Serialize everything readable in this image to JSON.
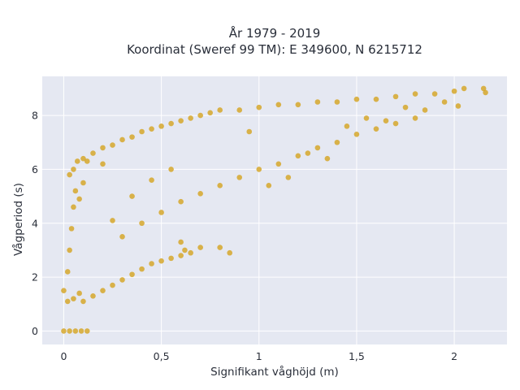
{
  "chart_data": {
    "type": "scatter",
    "title": "År 1979 - 2019",
    "subtitle": "Koordinat (Sweref 99 TM): E 349600, N 6215712",
    "xlabel": "Signifikant våghöjd (m)",
    "ylabel": "Vågperiod (s)",
    "xlim": [
      -0.11,
      2.27
    ],
    "ylim": [
      -0.5,
      9.45
    ],
    "x_ticks": [
      "0",
      "0,5",
      "1",
      "1,5",
      "2"
    ],
    "x_tick_values": [
      0,
      0.5,
      1,
      1.5,
      2
    ],
    "y_ticks": [
      "0",
      "2",
      "4",
      "6",
      "8"
    ],
    "y_tick_values": [
      0,
      2,
      4,
      6,
      8
    ],
    "grid": true,
    "point_color": "#D4A21E",
    "background_color": "#E5E8F2",
    "series": [
      {
        "values": [
          [
            0.0,
            0.0
          ],
          [
            0.03,
            0.0
          ],
          [
            0.06,
            0.0
          ],
          [
            0.09,
            0.0
          ],
          [
            0.12,
            0.0
          ],
          [
            0.0,
            1.5
          ],
          [
            0.02,
            1.1
          ],
          [
            0.05,
            1.2
          ],
          [
            0.08,
            1.4
          ],
          [
            0.1,
            1.1
          ],
          [
            0.02,
            2.2
          ],
          [
            0.03,
            3.0
          ],
          [
            0.04,
            3.8
          ],
          [
            0.05,
            4.6
          ],
          [
            0.06,
            5.2
          ],
          [
            0.03,
            5.8
          ],
          [
            0.05,
            6.0
          ],
          [
            0.07,
            6.3
          ],
          [
            0.1,
            6.4
          ],
          [
            0.12,
            6.3
          ],
          [
            0.15,
            1.3
          ],
          [
            0.2,
            1.5
          ],
          [
            0.25,
            1.7
          ],
          [
            0.3,
            1.9
          ],
          [
            0.35,
            2.1
          ],
          [
            0.4,
            2.3
          ],
          [
            0.45,
            2.5
          ],
          [
            0.5,
            2.6
          ],
          [
            0.55,
            2.7
          ],
          [
            0.6,
            2.8
          ],
          [
            0.65,
            2.9
          ],
          [
            0.7,
            3.1
          ],
          [
            0.8,
            3.1
          ],
          [
            0.15,
            6.6
          ],
          [
            0.2,
            6.8
          ],
          [
            0.25,
            6.9
          ],
          [
            0.3,
            7.1
          ],
          [
            0.35,
            7.2
          ],
          [
            0.4,
            7.4
          ],
          [
            0.45,
            7.5
          ],
          [
            0.5,
            7.6
          ],
          [
            0.55,
            7.7
          ],
          [
            0.6,
            7.8
          ],
          [
            0.65,
            7.9
          ],
          [
            0.7,
            8.0
          ],
          [
            0.75,
            8.1
          ],
          [
            0.8,
            8.2
          ],
          [
            0.9,
            8.2
          ],
          [
            1.0,
            8.3
          ],
          [
            1.1,
            8.4
          ],
          [
            1.2,
            8.4
          ],
          [
            1.3,
            8.5
          ],
          [
            1.4,
            8.5
          ],
          [
            1.5,
            8.6
          ],
          [
            1.6,
            8.6
          ],
          [
            1.7,
            8.7
          ],
          [
            1.8,
            8.8
          ],
          [
            1.9,
            8.8
          ],
          [
            2.0,
            8.9
          ],
          [
            2.05,
            9.0
          ],
          [
            2.15,
            9.0
          ],
          [
            2.16,
            8.85
          ],
          [
            2.02,
            8.35
          ],
          [
            1.95,
            8.5
          ],
          [
            1.85,
            8.2
          ],
          [
            0.3,
            3.5
          ],
          [
            0.4,
            4.0
          ],
          [
            0.5,
            4.4
          ],
          [
            0.6,
            4.8
          ],
          [
            0.7,
            5.1
          ],
          [
            0.8,
            5.4
          ],
          [
            0.9,
            5.7
          ],
          [
            1.0,
            6.0
          ],
          [
            1.1,
            6.2
          ],
          [
            1.2,
            6.5
          ],
          [
            1.3,
            6.8
          ],
          [
            1.4,
            7.0
          ],
          [
            1.5,
            7.3
          ],
          [
            1.6,
            7.5
          ],
          [
            1.7,
            7.7
          ],
          [
            1.8,
            7.9
          ],
          [
            0.25,
            4.1
          ],
          [
            0.35,
            5.0
          ],
          [
            0.45,
            5.6
          ],
          [
            0.55,
            6.0
          ],
          [
            0.6,
            3.3
          ],
          [
            0.62,
            3.0
          ],
          [
            0.85,
            2.9
          ],
          [
            0.95,
            7.4
          ],
          [
            1.05,
            5.4
          ],
          [
            1.15,
            5.7
          ],
          [
            1.25,
            6.6
          ],
          [
            1.35,
            6.4
          ],
          [
            1.45,
            7.6
          ],
          [
            1.55,
            7.9
          ],
          [
            1.65,
            7.8
          ],
          [
            1.75,
            8.3
          ],
          [
            0.2,
            6.2
          ],
          [
            0.1,
            5.5
          ],
          [
            0.08,
            4.9
          ]
        ]
      }
    ]
  }
}
